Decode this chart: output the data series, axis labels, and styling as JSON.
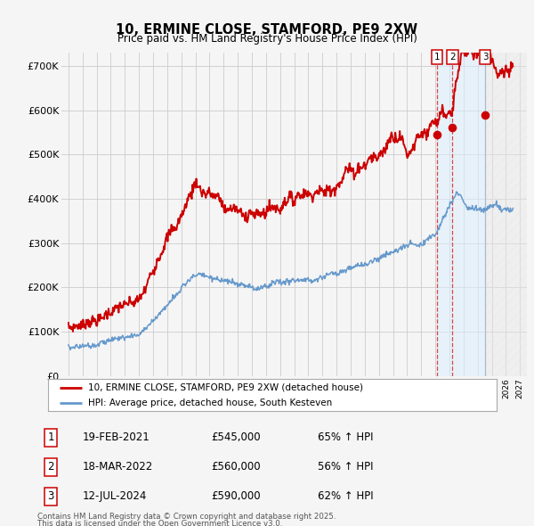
{
  "title": "10, ERMINE CLOSE, STAMFORD, PE9 2XW",
  "subtitle": "Price paid vs. HM Land Registry's House Price Index (HPI)",
  "legend_line1": "10, ERMINE CLOSE, STAMFORD, PE9 2XW (detached house)",
  "legend_line2": "HPI: Average price, detached house, South Kesteven",
  "transactions": [
    {
      "num": 1,
      "date": "19-FEB-2021",
      "price": 545000,
      "hpi_pct": "65%",
      "x_year": 2021.12
    },
    {
      "num": 2,
      "date": "18-MAR-2022",
      "price": 560000,
      "hpi_pct": "56%",
      "x_year": 2022.21
    },
    {
      "num": 3,
      "date": "12-JUL-2024",
      "price": 590000,
      "hpi_pct": "62%",
      "x_year": 2024.54
    }
  ],
  "footnote1": "Contains HM Land Registry data © Crown copyright and database right 2025.",
  "footnote2": "This data is licensed under the Open Government Licence v3.0.",
  "red_line_color": "#cc0000",
  "blue_line_color": "#6699cc",
  "background_color": "#f5f5f5",
  "grid_color": "#cccccc",
  "vline_color": "#dd4444",
  "ylim": [
    0,
    730000
  ],
  "xlim_start": 1994.5,
  "xlim_end": 2027.5,
  "yticks": [
    0,
    100000,
    200000,
    300000,
    400000,
    500000,
    600000,
    700000
  ]
}
